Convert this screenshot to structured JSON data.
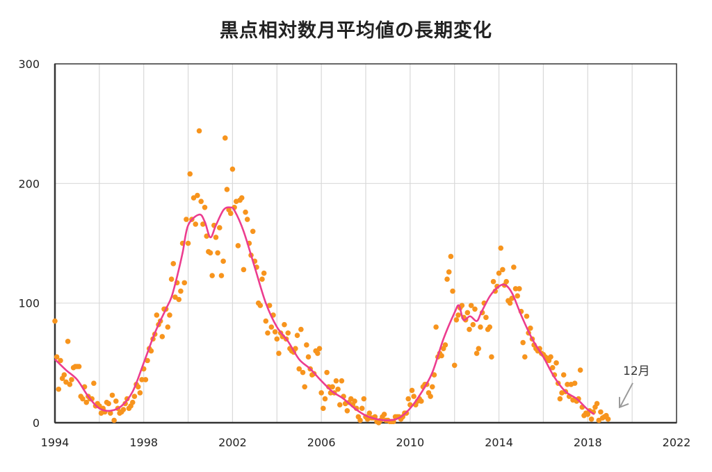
{
  "chart_data": {
    "type": "scatter",
    "title": "黒点相対数月平均値の長期変化",
    "xlabel": "",
    "ylabel": "",
    "xlim": [
      1994,
      2022
    ],
    "ylim": [
      0,
      300
    ],
    "x_ticks": [
      "1994",
      "1998",
      "2002",
      "2006",
      "2010",
      "2014",
      "2018",
      "2022"
    ],
    "y_ticks": [
      "0",
      "100",
      "200",
      "300"
    ],
    "grid": true,
    "colors": {
      "points": "#f7941d",
      "smoothed": "#ec3c8f",
      "axis": "#333333",
      "grid": "#d9d9d9",
      "arrow": "#999999"
    },
    "monthly_start_year": 1994,
    "monthly_values": {
      "1994": [
        85,
        55,
        28,
        52,
        37,
        40,
        34,
        68,
        32,
        36,
        46,
        47
      ],
      "1995": [
        47,
        47,
        22,
        20,
        30,
        17,
        22,
        20,
        20,
        33,
        14,
        16
      ],
      "1996": [
        14,
        8,
        12,
        9,
        17,
        16,
        8,
        23,
        2,
        18,
        12,
        8
      ],
      "1997": [
        9,
        11,
        16,
        20,
        12,
        14,
        17,
        22,
        32,
        30,
        25,
        36
      ],
      "1998": [
        45,
        36,
        52,
        62,
        60,
        70,
        74,
        90,
        82,
        85,
        72,
        95
      ],
      "1999": [
        95,
        80,
        90,
        120,
        133,
        105,
        117,
        103,
        110,
        150,
        117,
        170
      ],
      "2000": [
        150,
        208,
        170,
        188,
        166,
        190,
        244,
        185,
        166,
        180,
        156,
        143
      ],
      "2001": [
        142,
        123,
        165,
        155,
        142,
        163,
        123,
        135,
        238,
        195,
        178,
        175
      ],
      "2002": [
        212,
        180,
        185,
        148,
        186,
        188,
        128,
        176,
        170,
        150,
        140,
        160
      ],
      "2003": [
        135,
        130,
        100,
        98,
        120,
        125,
        85,
        75,
        98,
        80,
        90,
        76
      ],
      "2004": [
        70,
        58,
        75,
        72,
        82,
        70,
        75,
        62,
        60,
        59,
        62,
        73
      ],
      "2005": [
        45,
        78,
        42,
        30,
        65,
        55,
        45,
        40,
        41,
        60,
        58,
        62
      ],
      "2006": [
        25,
        12,
        20,
        42,
        30,
        25,
        30,
        25,
        35,
        28,
        15,
        35
      ],
      "2007": [
        22,
        16,
        10,
        17,
        20,
        15,
        18,
        12,
        5,
        2,
        12,
        20
      ],
      "2008": [
        5,
        3,
        8,
        4,
        4,
        5,
        1,
        0,
        2,
        5,
        7,
        2
      ],
      "2009": [
        2,
        1,
        1,
        1,
        5,
        5,
        5,
        3,
        5,
        8,
        8,
        20
      ],
      "2010": [
        15,
        27,
        22,
        15,
        18,
        20,
        18,
        30,
        32,
        32,
        25,
        22
      ],
      "2011": [
        30,
        40,
        80,
        55,
        58,
        56,
        62,
        65,
        120,
        126,
        139,
        110
      ],
      "2012": [
        48,
        86,
        90,
        96,
        98,
        88,
        86,
        92,
        78,
        98,
        82,
        95
      ],
      "2013": [
        58,
        62,
        80,
        92,
        100,
        88,
        78,
        80,
        55,
        118,
        110,
        114
      ],
      "2014": [
        125,
        146,
        128,
        115,
        118,
        102,
        100,
        104,
        130,
        112,
        106,
        112
      ],
      "2015": [
        93,
        67,
        55,
        89,
        75,
        79,
        70,
        65,
        62,
        60,
        62,
        58
      ],
      "2016": [
        57,
        55,
        54,
        52,
        55,
        46,
        40,
        50,
        33,
        20,
        25,
        40
      ],
      "2017": [
        26,
        32,
        22,
        32,
        19,
        33,
        18,
        20,
        44,
        13,
        6,
        8
      ],
      "2018": [
        7,
        10,
        3,
        9,
        13,
        16,
        2,
        9,
        4,
        5,
        6,
        3
      ]
    },
    "smoothed": [
      [
        1994.0,
        53
      ],
      [
        1994.5,
        44
      ],
      [
        1995.0,
        36
      ],
      [
        1995.5,
        22
      ],
      [
        1996.0,
        12
      ],
      [
        1996.5,
        10
      ],
      [
        1997.0,
        14
      ],
      [
        1997.5,
        26
      ],
      [
        1998.0,
        50
      ],
      [
        1998.5,
        75
      ],
      [
        1999.0,
        95
      ],
      [
        1999.25,
        105
      ],
      [
        1999.5,
        122
      ],
      [
        1999.75,
        142
      ],
      [
        2000.0,
        165
      ],
      [
        2000.5,
        174
      ],
      [
        2000.75,
        168
      ],
      [
        2001.0,
        155
      ],
      [
        2001.25,
        165
      ],
      [
        2001.6,
        178
      ],
      [
        2001.9,
        180
      ],
      [
        2002.1,
        177
      ],
      [
        2002.5,
        160
      ],
      [
        2003.0,
        130
      ],
      [
        2003.5,
        100
      ],
      [
        2004.0,
        80
      ],
      [
        2004.5,
        68
      ],
      [
        2005.0,
        53
      ],
      [
        2005.5,
        45
      ],
      [
        2006.0,
        35
      ],
      [
        2006.5,
        26
      ],
      [
        2007.0,
        20
      ],
      [
        2007.5,
        12
      ],
      [
        2008.0,
        6
      ],
      [
        2008.5,
        3
      ],
      [
        2009.0,
        2
      ],
      [
        2009.5,
        4
      ],
      [
        2010.0,
        12
      ],
      [
        2010.5,
        25
      ],
      [
        2011.0,
        42
      ],
      [
        2011.5,
        70
      ],
      [
        2012.0,
        92
      ],
      [
        2012.2,
        98
      ],
      [
        2012.4,
        86
      ],
      [
        2012.7,
        89
      ],
      [
        2013.0,
        85
      ],
      [
        2013.2,
        92
      ],
      [
        2013.6,
        106
      ],
      [
        2014.0,
        114
      ],
      [
        2014.3,
        115
      ],
      [
        2014.6,
        108
      ],
      [
        2015.0,
        90
      ],
      [
        2015.5,
        70
      ],
      [
        2016.0,
        55
      ],
      [
        2016.5,
        38
      ],
      [
        2017.0,
        26
      ],
      [
        2017.5,
        20
      ],
      [
        2018.0,
        11
      ],
      [
        2018.3,
        7
      ]
    ],
    "annotations": [
      {
        "text": "12月",
        "points_to": [
          2018.9,
          3
        ]
      }
    ]
  }
}
